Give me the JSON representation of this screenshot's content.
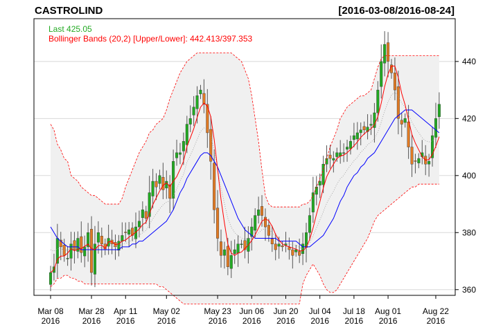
{
  "chart_data": {
    "type": "candlestick",
    "title": "CASTROLIND",
    "date_range": "[2016-03-08/2016-08-24]",
    "legend": {
      "last_label": "Last 425.05",
      "bbands_label": "Bollinger Bands (20,2) [Upper/Lower]: 442.413/397.353",
      "position": "top-left"
    },
    "colors": {
      "up": "#22aa22",
      "down": "#e07a24",
      "ma": "#0000ff",
      "close_line": "#ff0000",
      "band": "#ff0000",
      "band_fill": "#f0f0f0",
      "grid": "#d8d8d8",
      "last_text": "#22aa22",
      "bbands_text": "#ff0000"
    },
    "ylim": [
      358,
      455
    ],
    "yticks": [
      "360",
      "380",
      "400",
      "420",
      "440"
    ],
    "xticks": [
      {
        "label": "Mar 08",
        "year": "2016",
        "index": 0
      },
      {
        "label": "Mar 28",
        "year": "2016",
        "index": 12
      },
      {
        "label": "Apr 11",
        "year": "2016",
        "index": 22
      },
      {
        "label": "May 02",
        "year": "2016",
        "index": 34
      },
      {
        "label": "May 23",
        "year": "2016",
        "index": 49
      },
      {
        "label": "Jun 06",
        "year": "2016",
        "index": 59
      },
      {
        "label": "Jun 20",
        "year": "2016",
        "index": 69
      },
      {
        "label": "Jul 04",
        "year": "2016",
        "index": 79
      },
      {
        "label": "Jul 18",
        "year": "2016",
        "index": 89
      },
      {
        "label": "Aug 01",
        "year": "2016",
        "index": 99
      },
      {
        "label": "Aug 22",
        "year": "2016",
        "index": 113
      }
    ],
    "grid": true,
    "closes": [
      366,
      368,
      378,
      375,
      372,
      371,
      376,
      374,
      378,
      373,
      375,
      380,
      366,
      376,
      380,
      376,
      374,
      378,
      376,
      375,
      377,
      379,
      380,
      381,
      379,
      382,
      384,
      388,
      385,
      394,
      398,
      396,
      400,
      395,
      398,
      392,
      405,
      408,
      408,
      412,
      418,
      420,
      424,
      428,
      430,
      425,
      415,
      405,
      388,
      378,
      372,
      374,
      368,
      372,
      374,
      376,
      376,
      374,
      378,
      382,
      386,
      388,
      386,
      382,
      379,
      376,
      374,
      376,
      375,
      376,
      374,
      372,
      374,
      372,
      376,
      380,
      386,
      394,
      396,
      398,
      404,
      406,
      406,
      406,
      408,
      408,
      408,
      410,
      412,
      414,
      415,
      416,
      416,
      417,
      418,
      422,
      430,
      440,
      446,
      440,
      436,
      430,
      420,
      418,
      420,
      410,
      404,
      405,
      406,
      408,
      404,
      405,
      414,
      420,
      425
    ],
    "ma20": [
      382,
      380,
      378,
      377,
      376,
      375,
      375,
      375,
      375,
      374,
      374,
      374,
      374,
      374,
      374,
      374,
      374,
      374,
      374,
      374,
      374,
      375,
      375,
      375,
      376,
      376,
      377,
      377,
      378,
      379,
      380,
      381,
      382,
      383,
      384,
      386,
      388,
      391,
      394,
      396,
      399,
      401,
      403,
      405,
      407,
      408,
      408,
      407,
      405,
      403,
      400,
      397,
      394,
      391,
      388,
      385,
      383,
      381,
      380,
      379,
      378,
      378,
      378,
      378,
      378,
      378,
      378,
      377,
      377,
      377,
      377,
      377,
      377,
      376,
      375,
      375,
      375,
      376,
      377,
      378,
      379,
      381,
      383,
      385,
      388,
      391,
      393,
      396,
      398,
      400,
      401,
      403,
      404,
      406,
      407,
      408,
      410,
      412,
      414,
      416,
      418,
      420,
      421,
      422,
      423,
      423,
      423,
      422,
      421,
      420,
      419,
      418,
      417,
      416,
      415
    ],
    "upper": [
      418,
      416,
      411,
      409,
      406,
      405,
      400,
      399,
      398,
      396,
      395,
      394,
      393,
      393,
      392,
      391,
      390,
      390,
      390,
      390,
      390,
      392,
      396,
      399,
      402,
      405,
      408,
      410,
      412,
      415,
      416,
      418,
      419,
      420,
      423,
      427,
      430,
      433,
      436,
      438,
      440,
      441,
      442,
      443,
      443,
      443,
      443,
      443,
      443,
      443,
      443,
      443,
      443,
      443,
      442,
      441,
      440,
      437,
      434,
      428,
      420,
      412,
      402,
      393,
      390,
      389,
      389,
      389,
      389,
      389,
      389,
      389,
      389,
      389,
      390,
      390,
      391,
      393,
      396,
      399,
      402,
      406,
      410,
      413,
      416,
      420,
      422,
      424,
      425,
      426,
      427,
      428,
      428,
      429,
      430,
      434,
      438,
      441,
      442,
      442,
      442,
      442,
      442,
      442,
      442,
      442,
      442,
      442,
      442,
      442,
      442,
      442,
      442,
      442,
      442
    ],
    "lower": [
      361,
      362,
      364,
      364,
      365,
      365,
      364,
      364,
      363,
      363,
      362,
      362,
      362,
      362,
      362,
      362,
      362,
      362,
      362,
      362,
      362,
      362,
      362,
      362,
      362,
      362,
      362,
      362,
      362,
      362,
      362,
      362,
      361,
      361,
      360,
      359,
      358,
      357,
      356,
      355,
      355,
      355,
      355,
      355,
      355,
      355,
      355,
      355,
      355,
      355,
      355,
      355,
      355,
      355,
      355,
      355,
      355,
      355,
      355,
      355,
      355,
      355,
      355,
      355,
      355,
      355,
      355,
      355,
      355,
      355,
      355,
      355,
      355,
      355,
      362,
      365,
      367,
      369,
      367,
      365,
      362,
      360,
      359,
      359,
      360,
      362,
      364,
      366,
      368,
      370,
      372,
      374,
      376,
      378,
      381,
      384,
      386,
      387,
      388,
      389,
      390,
      391,
      392,
      393,
      394,
      395,
      396,
      396,
      397,
      397,
      397,
      397,
      397,
      397,
      397
    ]
  }
}
